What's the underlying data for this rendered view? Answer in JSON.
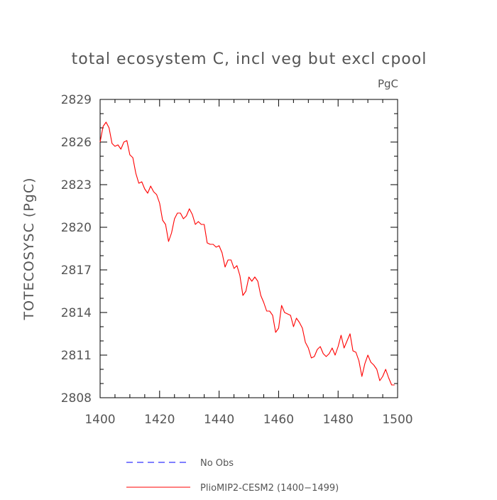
{
  "chart_data": {
    "type": "line",
    "title": "total ecosystem C, incl veg but excl cpool",
    "units": "PgC",
    "xlabel": "",
    "ylabel": "TOTECOSYSC  (PgC)",
    "xlim": [
      1400,
      1500
    ],
    "ylim": [
      2808,
      2829
    ],
    "xticks": [
      1400,
      1420,
      1440,
      1460,
      1480,
      1500
    ],
    "yticks": [
      2808,
      2811,
      2814,
      2817,
      2820,
      2823,
      2826,
      2829
    ],
    "grid": false,
    "legend_position": "bottom",
    "series": [
      {
        "name": "PlioMIP2-CESM2 (1400-1499)",
        "color": "#ff0000",
        "style": "solid",
        "x": [
          1400,
          1401,
          1402,
          1403,
          1404,
          1405,
          1406,
          1407,
          1408,
          1409,
          1410,
          1411,
          1412,
          1413,
          1414,
          1415,
          1416,
          1417,
          1418,
          1419,
          1420,
          1421,
          1422,
          1423,
          1424,
          1425,
          1426,
          1427,
          1428,
          1429,
          1430,
          1431,
          1432,
          1433,
          1434,
          1435,
          1436,
          1437,
          1438,
          1439,
          1440,
          1441,
          1442,
          1443,
          1444,
          1445,
          1446,
          1447,
          1448,
          1449,
          1450,
          1451,
          1452,
          1453,
          1454,
          1455,
          1456,
          1457,
          1458,
          1459,
          1460,
          1461,
          1462,
          1463,
          1464,
          1465,
          1466,
          1467,
          1468,
          1469,
          1470,
          1471,
          1472,
          1473,
          1474,
          1475,
          1476,
          1477,
          1478,
          1479,
          1480,
          1481,
          1482,
          1483,
          1484,
          1485,
          1486,
          1487,
          1488,
          1489,
          1490,
          1491,
          1492,
          1493,
          1494,
          1495,
          1496,
          1497,
          1498,
          1499
        ],
        "y": [
          2826.0,
          2827.1,
          2827.4,
          2827.0,
          2825.9,
          2825.7,
          2825.8,
          2825.5,
          2826.0,
          2826.1,
          2825.1,
          2824.9,
          2823.8,
          2823.1,
          2823.2,
          2822.7,
          2822.4,
          2822.9,
          2822.5,
          2822.3,
          2821.7,
          2820.5,
          2820.2,
          2819.0,
          2819.6,
          2820.6,
          2821.0,
          2821.0,
          2820.6,
          2820.8,
          2821.3,
          2820.9,
          2820.2,
          2820.4,
          2820.2,
          2820.2,
          2818.9,
          2818.8,
          2818.8,
          2818.6,
          2818.7,
          2818.2,
          2817.2,
          2817.7,
          2817.7,
          2817.1,
          2817.3,
          2816.6,
          2815.2,
          2815.5,
          2816.5,
          2816.2,
          2816.5,
          2816.2,
          2815.2,
          2814.7,
          2814.1,
          2814.1,
          2813.8,
          2812.6,
          2812.9,
          2814.5,
          2814.0,
          2813.9,
          2813.8,
          2813.0,
          2813.6,
          2813.3,
          2812.9,
          2811.9,
          2811.5,
          2810.8,
          2810.9,
          2811.4,
          2811.6,
          2811.1,
          2810.9,
          2811.1,
          2811.5,
          2811.0,
          2811.6,
          2812.4,
          2811.5,
          2812.0,
          2812.5,
          2811.3,
          2811.2,
          2810.6,
          2809.5,
          2810.4,
          2811.0,
          2810.5,
          2810.3,
          2810.0,
          2809.2,
          2809.5,
          2810.0,
          2809.4,
          2808.9,
          2808.9
        ]
      }
    ],
    "legend": [
      {
        "label": "No Obs",
        "color": "#0000ff",
        "style": "dashed"
      },
      {
        "label": "PlioMIP2-CESM2 (1400−1499)",
        "color": "#ff0000",
        "style": "solid"
      }
    ]
  }
}
